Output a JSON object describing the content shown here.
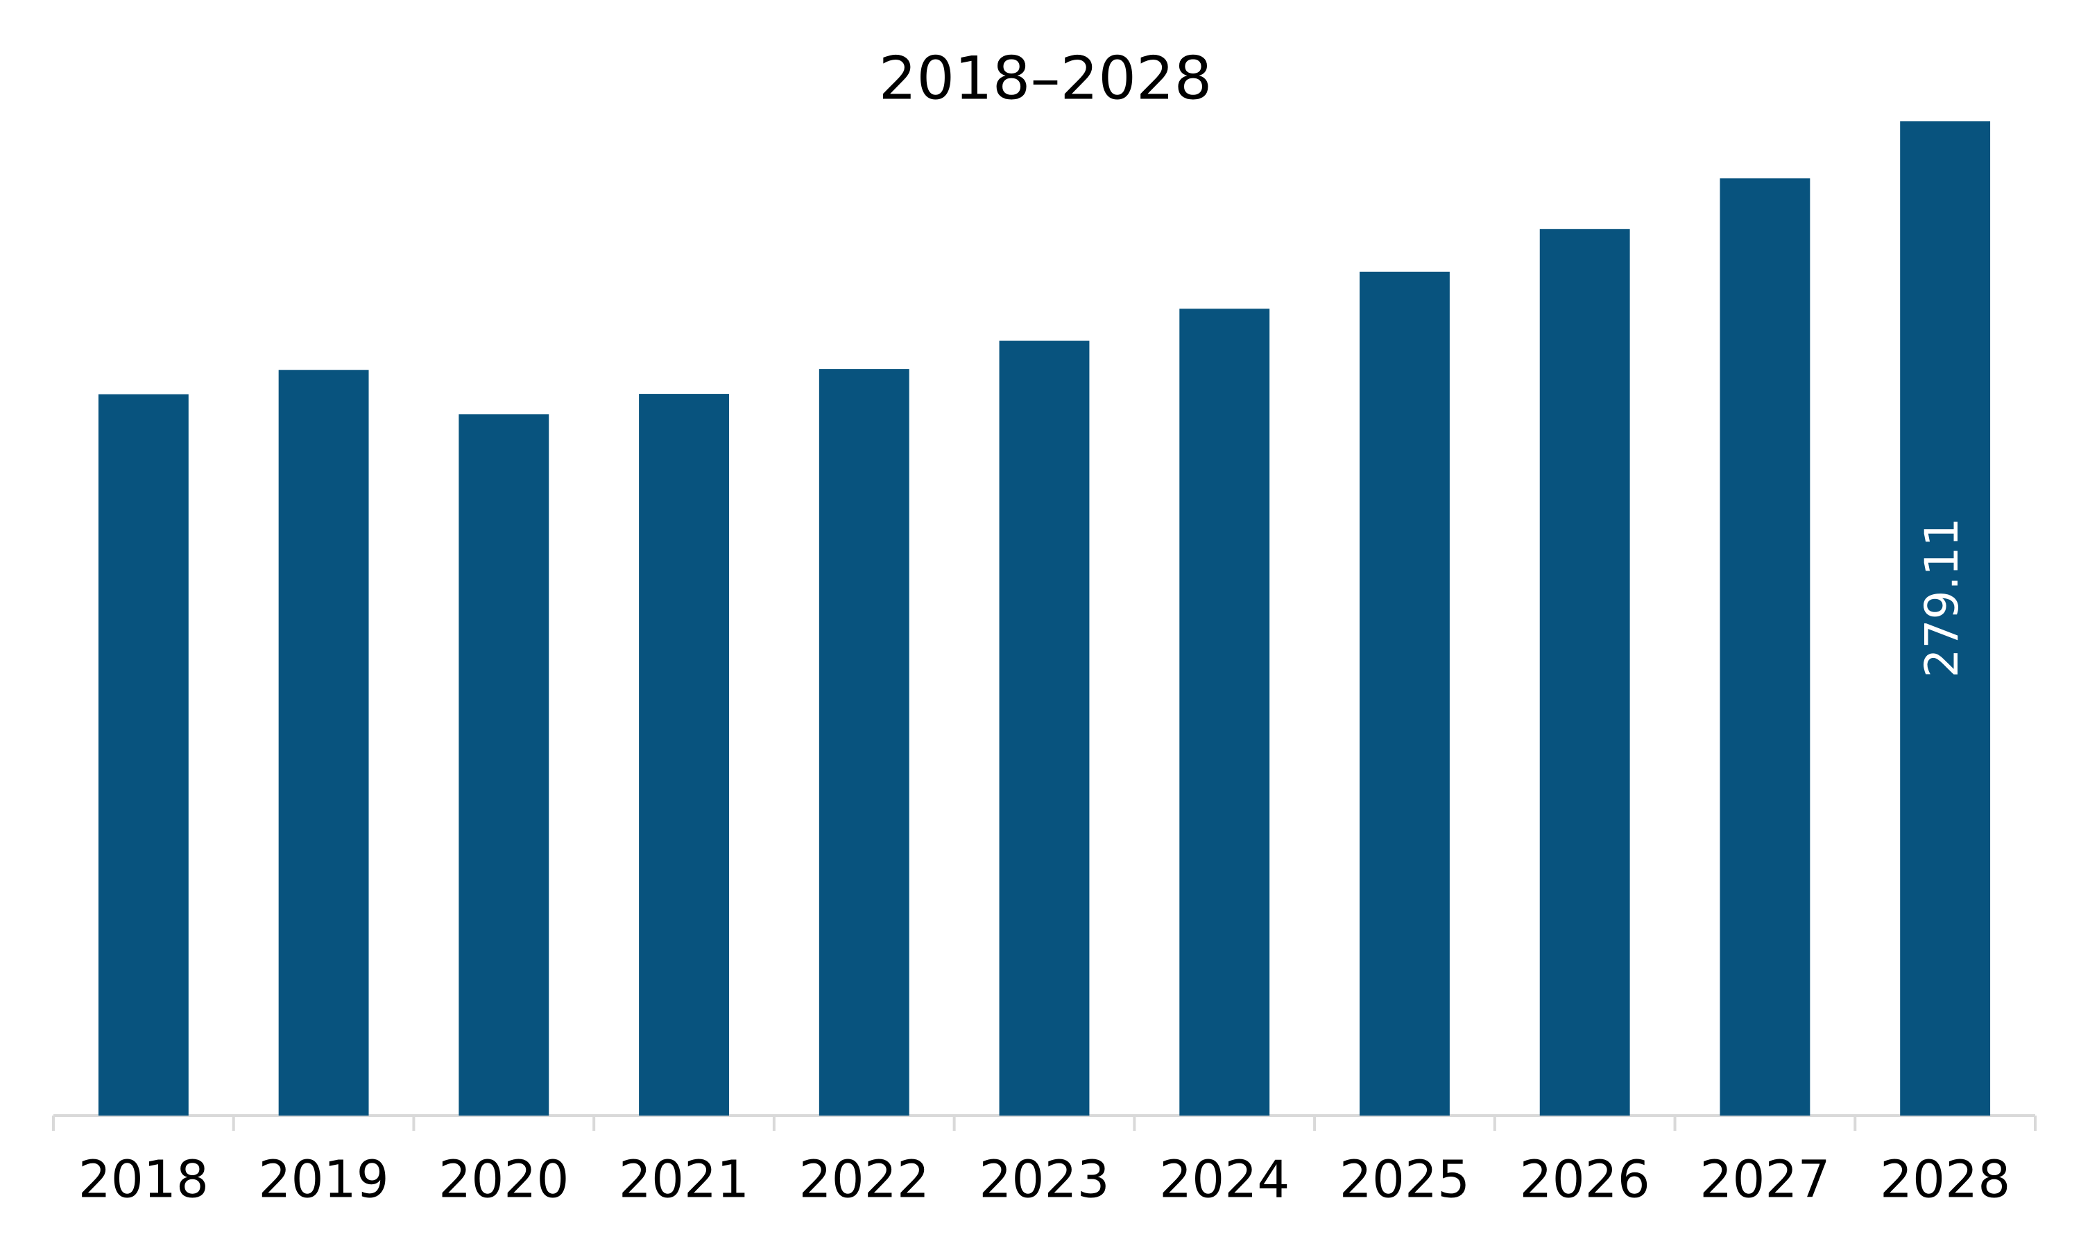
{
  "chart_data": {
    "type": "bar",
    "title": "2018–2028",
    "categories": [
      "2018",
      "2019",
      "2020",
      "2021",
      "2022",
      "2023",
      "2024",
      "2025",
      "2026",
      "2027",
      "2028"
    ],
    "values": [
      202.5,
      209.3,
      196.9,
      202.6,
      209.6,
      217.5,
      226.5,
      236.9,
      248.9,
      263.1,
      279.11
    ],
    "value_labels": [
      null,
      null,
      null,
      null,
      null,
      null,
      null,
      null,
      null,
      null,
      "279.11"
    ],
    "color": "#08537e",
    "grid": false
  }
}
